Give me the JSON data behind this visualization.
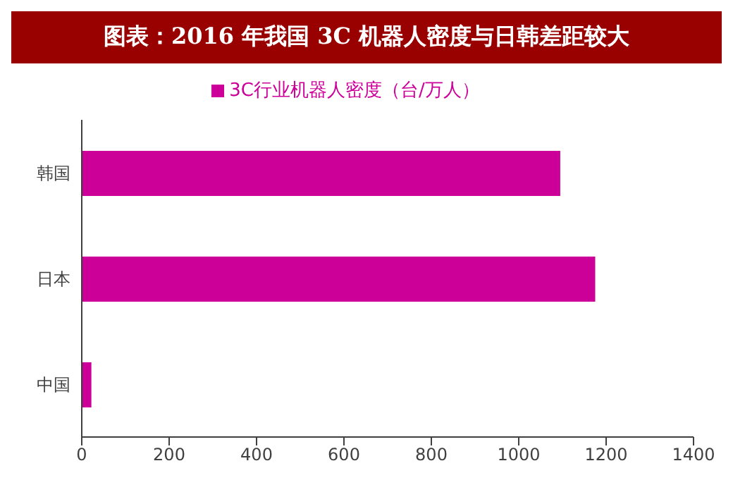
{
  "chart_data": {
    "type": "bar",
    "orientation": "horizontal",
    "title": "图表：2016 年我国 3C 机器人密度与日韩差距较大",
    "categories": [
      "韩国",
      "日本",
      "中国"
    ],
    "series": [
      {
        "name": "3C行业机器人密度（台/万人）",
        "color": "#cc0099",
        "values": [
          1095,
          1175,
          22
        ]
      }
    ],
    "xlim": [
      0,
      1400
    ],
    "xticks": [
      0,
      200,
      400,
      600,
      800,
      1000,
      1200,
      1400
    ],
    "grid": false,
    "legend": "top"
  }
}
